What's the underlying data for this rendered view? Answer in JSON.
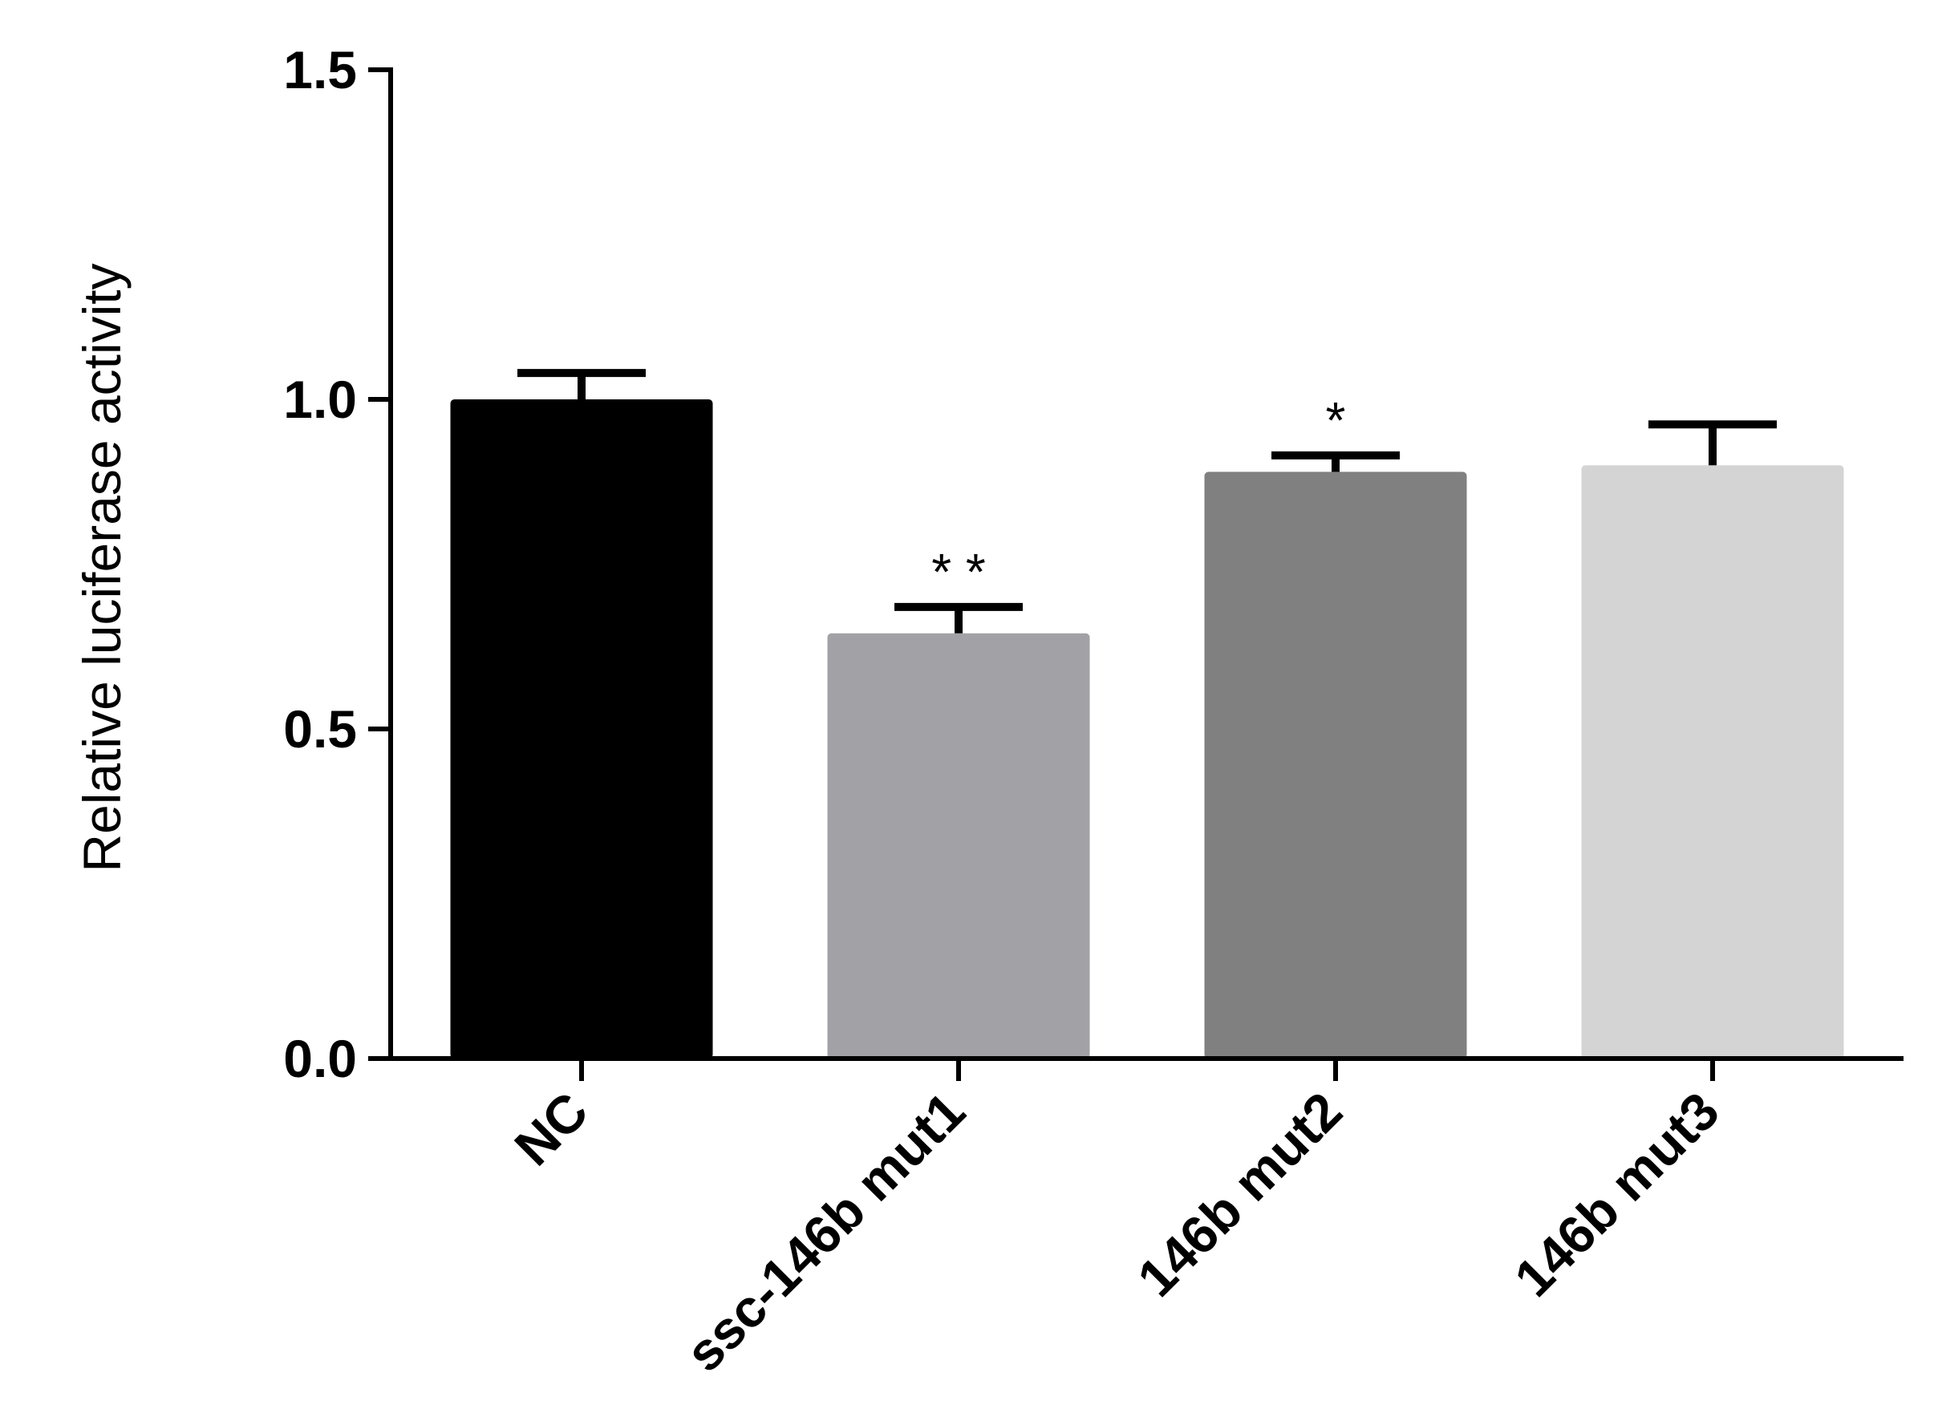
{
  "chart_data": {
    "type": "bar",
    "categories": [
      "NC",
      "ssc-146b mut1",
      "146b mut2",
      "146b mut3"
    ],
    "values": [
      1.0,
      0.645,
      0.89,
      0.9
    ],
    "errors": [
      0.04,
      0.04,
      0.025,
      0.062
    ],
    "significance": [
      "",
      "* *",
      "*",
      ""
    ],
    "colors": [
      "#000000",
      "#a2a1a6",
      "#808080",
      "#d4d4d4"
    ],
    "title": "",
    "xlabel": "",
    "ylabel": "Relative luciferase activity",
    "ylim": [
      0,
      1.5
    ],
    "yticks": [
      0.0,
      0.5,
      1.0,
      1.5
    ],
    "ytick_labels": [
      "0.0",
      "0.5",
      "1.0",
      "1.5"
    ],
    "grid": false,
    "legend": "none"
  }
}
